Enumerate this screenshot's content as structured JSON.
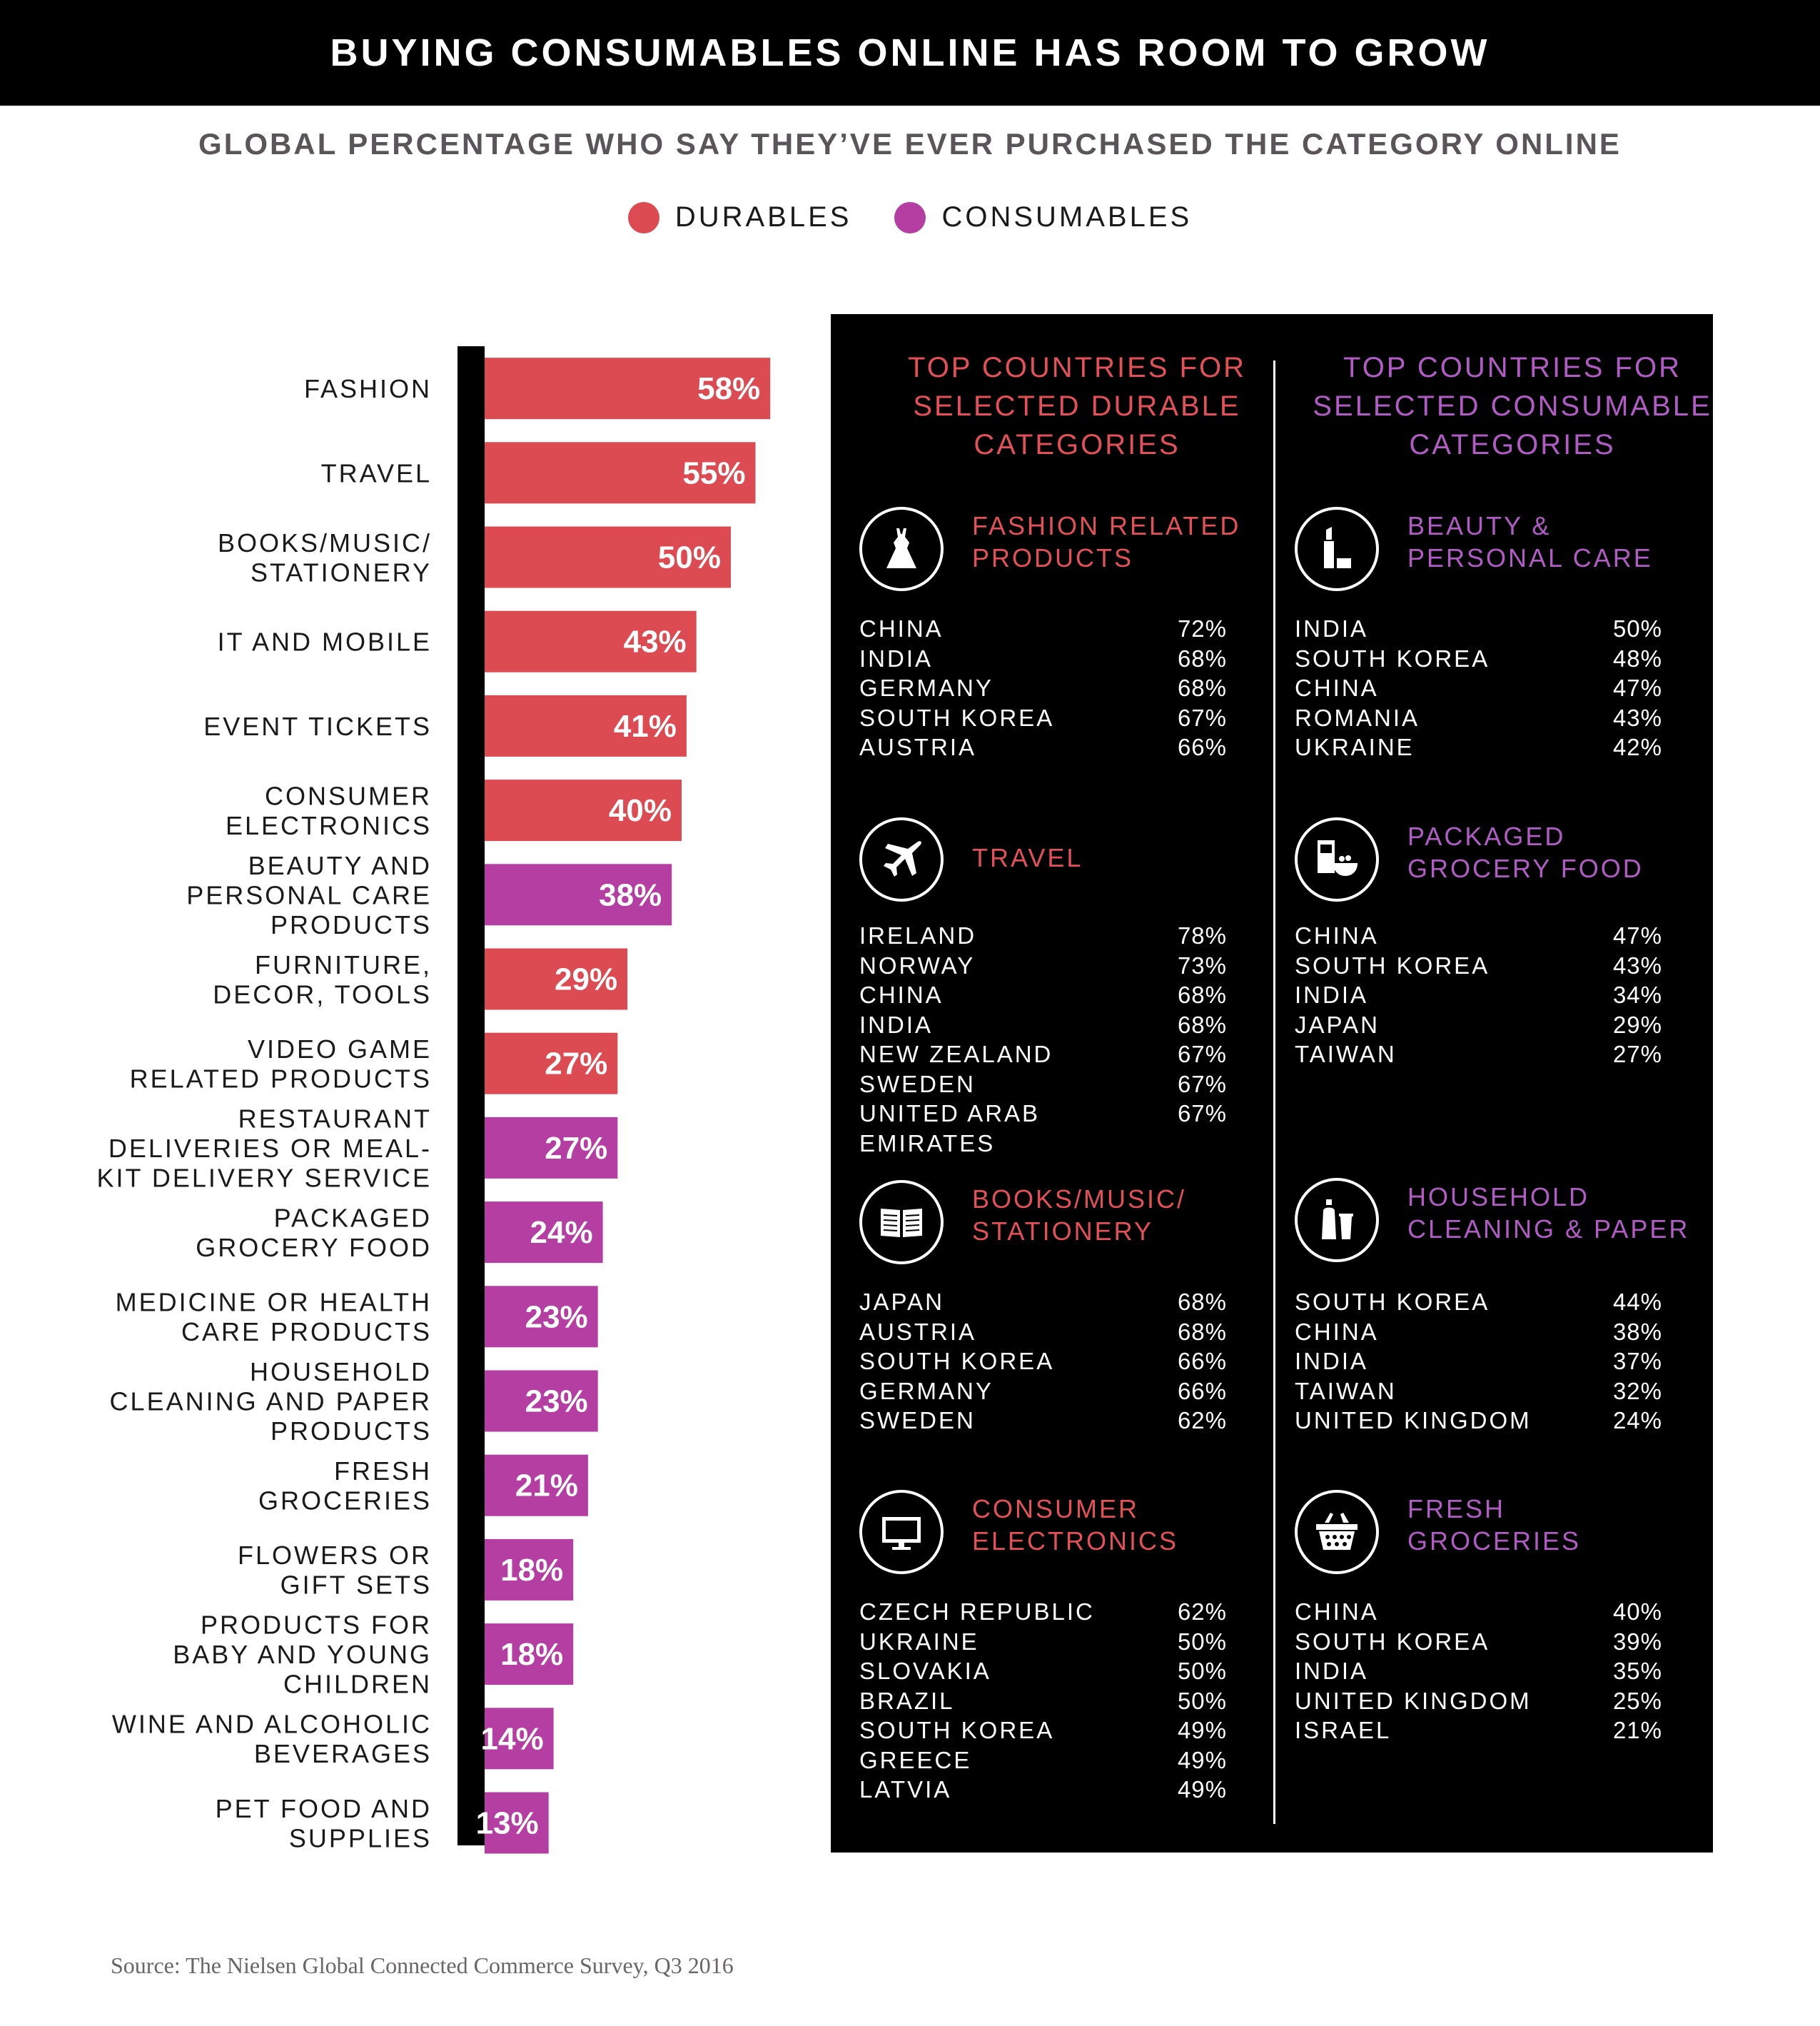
{
  "title": "BUYING CONSUMABLES ONLINE HAS ROOM TO GROW",
  "subtitle": "GLOBAL PERCENTAGE WHO SAY THEY’VE EVER PURCHASED THE CATEGORY ONLINE",
  "legend": [
    {
      "label": "DURABLES",
      "color": "#dd4b52"
    },
    {
      "label": "CONSUMABLES",
      "color": "#b53ea3"
    }
  ],
  "chart_data": {
    "type": "bar",
    "orientation": "horizontal",
    "xlim": [
      0,
      100
    ],
    "colors": {
      "durable": "#dd4b52",
      "consumable": "#b53ea3"
    },
    "categories": [
      {
        "lines": [
          "FASHION"
        ],
        "value": 58,
        "label": "58%",
        "group": "durable"
      },
      {
        "lines": [
          "TRAVEL"
        ],
        "value": 55,
        "label": "55%",
        "group": "durable"
      },
      {
        "lines": [
          "BOOKS/MUSIC/",
          "STATIONERY"
        ],
        "value": 50,
        "label": "50%",
        "group": "durable"
      },
      {
        "lines": [
          "IT AND MOBILE"
        ],
        "value": 43,
        "label": "43%",
        "group": "durable"
      },
      {
        "lines": [
          "EVENT TICKETS"
        ],
        "value": 41,
        "label": "41%",
        "group": "durable"
      },
      {
        "lines": [
          "CONSUMER",
          "ELECTRONICS"
        ],
        "value": 40,
        "label": "40%",
        "group": "durable"
      },
      {
        "lines": [
          "BEAUTY AND",
          "PERSONAL CARE",
          "PRODUCTS"
        ],
        "value": 38,
        "label": "38%",
        "group": "consumable"
      },
      {
        "lines": [
          "FURNITURE,",
          "DECOR, TOOLS"
        ],
        "value": 29,
        "label": "29%",
        "group": "durable"
      },
      {
        "lines": [
          "VIDEO GAME",
          "RELATED PRODUCTS"
        ],
        "value": 27,
        "label": "27%",
        "group": "durable"
      },
      {
        "lines": [
          "RESTAURANT",
          "DELIVERIES OR MEAL-",
          "KIT DELIVERY SERVICE"
        ],
        "value": 27,
        "label": "27%",
        "group": "consumable"
      },
      {
        "lines": [
          "PACKAGED",
          "GROCERY FOOD"
        ],
        "value": 24,
        "label": "24%",
        "group": "consumable"
      },
      {
        "lines": [
          "MEDICINE OR HEALTH",
          "CARE PRODUCTS"
        ],
        "value": 23,
        "label": "23%",
        "group": "consumable"
      },
      {
        "lines": [
          "HOUSEHOLD",
          "CLEANING AND PAPER",
          "PRODUCTS"
        ],
        "value": 23,
        "label": "23%",
        "group": "consumable"
      },
      {
        "lines": [
          "FRESH",
          "GROCERIES"
        ],
        "value": 21,
        "label": "21%",
        "group": "consumable"
      },
      {
        "lines": [
          "FLOWERS OR",
          "GIFT SETS"
        ],
        "value": 18,
        "label": "18%",
        "group": "consumable"
      },
      {
        "lines": [
          "PRODUCTS FOR",
          "BABY AND YOUNG",
          "CHILDREN"
        ],
        "value": 18,
        "label": "18%",
        "group": "consumable"
      },
      {
        "lines": [
          "WINE AND ALCOHOLIC",
          "BEVERAGES"
        ],
        "value": 14,
        "label": "14%",
        "group": "consumable"
      },
      {
        "lines": [
          "PET FOOD AND",
          "SUPPLIES"
        ],
        "value": 13,
        "label": "13%",
        "group": "consumable"
      }
    ]
  },
  "panel": {
    "durable_header": [
      "TOP COUNTRIES FOR",
      "SELECTED DURABLE",
      "CATEGORIES"
    ],
    "consumable_header": [
      "TOP COUNTRIES FOR",
      "SELECTED CONSUMABLE",
      "CATEGORIES"
    ],
    "durable_sections": [
      {
        "icon": "dress-icon",
        "title": [
          "FASHION RELATED",
          "PRODUCTS"
        ],
        "rows": [
          {
            "country": "CHINA",
            "pct": "72%"
          },
          {
            "country": "INDIA",
            "pct": "68%"
          },
          {
            "country": "GERMANY",
            "pct": "68%"
          },
          {
            "country": "SOUTH KOREA",
            "pct": "67%"
          },
          {
            "country": "AUSTRIA",
            "pct": "66%"
          }
        ]
      },
      {
        "icon": "airplane-icon",
        "title": [
          "TRAVEL"
        ],
        "rows": [
          {
            "country": "IRELAND",
            "pct": "78%"
          },
          {
            "country": "NORWAY",
            "pct": "73%"
          },
          {
            "country": "CHINA",
            "pct": "68%"
          },
          {
            "country": "INDIA",
            "pct": "68%"
          },
          {
            "country": "NEW ZEALAND",
            "pct": "67%"
          },
          {
            "country": "SWEDEN",
            "pct": "67%"
          },
          {
            "country": "UNITED ARAB EMIRATES",
            "pct": "67%"
          }
        ]
      },
      {
        "icon": "book-icon",
        "title": [
          "BOOKS/MUSIC/",
          "STATIONERY"
        ],
        "rows": [
          {
            "country": "JAPAN",
            "pct": "68%"
          },
          {
            "country": "AUSTRIA",
            "pct": "68%"
          },
          {
            "country": "SOUTH KOREA",
            "pct": "66%"
          },
          {
            "country": "GERMANY",
            "pct": "66%"
          },
          {
            "country": "SWEDEN",
            "pct": "62%"
          }
        ]
      },
      {
        "icon": "monitor-icon",
        "title": [
          "CONSUMER",
          "ELECTRONICS"
        ],
        "rows": [
          {
            "country": "CZECH REPUBLIC",
            "pct": "62%"
          },
          {
            "country": "UKRAINE",
            "pct": "50%"
          },
          {
            "country": "SLOVAKIA",
            "pct": "50%"
          },
          {
            "country": "BRAZIL",
            "pct": "50%"
          },
          {
            "country": "SOUTH KOREA",
            "pct": "49%"
          },
          {
            "country": "GREECE",
            "pct": "49%"
          },
          {
            "country": "LATVIA",
            "pct": "49%"
          }
        ]
      }
    ],
    "consumable_sections": [
      {
        "icon": "lipstick-icon",
        "title": [
          "BEAUTY &",
          "PERSONAL CARE"
        ],
        "rows": [
          {
            "country": "INDIA",
            "pct": "50%"
          },
          {
            "country": "SOUTH KOREA",
            "pct": "48%"
          },
          {
            "country": "CHINA",
            "pct": "47%"
          },
          {
            "country": "ROMANIA",
            "pct": "43%"
          },
          {
            "country": "UKRAINE",
            "pct": "42%"
          }
        ]
      },
      {
        "icon": "cereal-bowl-icon",
        "title": [
          "PACKAGED",
          "GROCERY FOOD"
        ],
        "rows": [
          {
            "country": "CHINA",
            "pct": "47%"
          },
          {
            "country": "SOUTH KOREA",
            "pct": "43%"
          },
          {
            "country": "INDIA",
            "pct": "34%"
          },
          {
            "country": "JAPAN",
            "pct": "29%"
          },
          {
            "country": "TAIWAN",
            "pct": "27%"
          }
        ]
      },
      {
        "icon": "spray-bottle-icon",
        "title": [
          "HOUSEHOLD",
          "CLEANING & PAPER"
        ],
        "rows": [
          {
            "country": "SOUTH KOREA",
            "pct": "44%"
          },
          {
            "country": "CHINA",
            "pct": "38%"
          },
          {
            "country": "INDIA",
            "pct": "37%"
          },
          {
            "country": "TAIWAN",
            "pct": "32%"
          },
          {
            "country": "UNITED KINGDOM",
            "pct": "24%"
          }
        ]
      },
      {
        "icon": "basket-icon",
        "title": [
          "FRESH",
          "GROCERIES"
        ],
        "rows": [
          {
            "country": "CHINA",
            "pct": "40%"
          },
          {
            "country": "SOUTH KOREA",
            "pct": "39%"
          },
          {
            "country": "INDIA",
            "pct": "35%"
          },
          {
            "country": "UNITED KINGDOM",
            "pct": "25%"
          },
          {
            "country": "ISRAEL",
            "pct": "21%"
          }
        ]
      }
    ]
  },
  "source": "Source: The Nielsen Global Connected Commerce Survey, Q3 2016"
}
